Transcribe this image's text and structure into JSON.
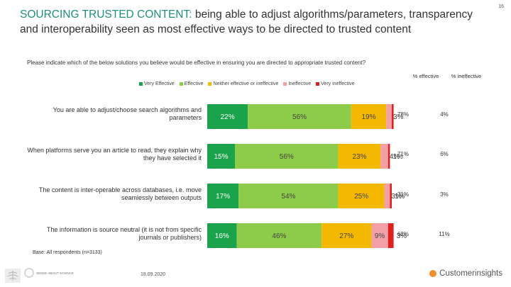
{
  "page": {
    "title_lead": "SOURCING TRUSTED CONTENT:",
    "title_rest": " being able to adjust algorithms/parameters, transparency and interoperability seen as most effective ways to be directed to trusted content",
    "page_number": "16",
    "question": "Please indicate which of the below solutions you believe would be effective in ensuring you are directed to appropriate trusted content?",
    "base": "Base: All respondents (n=3133)",
    "date": "18.09.2020",
    "brand": "Customerinsights",
    "logo_text": "SENSE ABOUT SCIENCE",
    "publisher_logo": "ELSEVIER"
  },
  "colors": {
    "very_effective": "#1aa34a",
    "effective": "#8dcb4a",
    "neither": "#f5b800",
    "ineffective": "#f2a0a6",
    "very_ineffective": "#e0201d",
    "title_accent": "#1f8f7a"
  },
  "chart_data": {
    "type": "bar",
    "orientation": "horizontal",
    "stacked": true,
    "legend": [
      "Very Effective",
      "Effective",
      "Neither effective or ineffective",
      "Ineffective",
      "Very ineffective"
    ],
    "legend_position": "top",
    "categories": [
      "You are able to adjust/choose search algorithms and parameters",
      "When platforms serve you an article to read, they explain why they have selected it",
      "The content is inter-operable across databases, i.e. move seamlessly between outputs",
      "The information is source neutral (it is not from specific journals or publishers)"
    ],
    "series": [
      {
        "name": "Very Effective",
        "values": [
          22,
          15,
          17,
          16
        ],
        "labels": [
          "22%",
          "15%",
          "17%",
          "16%"
        ]
      },
      {
        "name": "Effective",
        "values": [
          56,
          56,
          54,
          46
        ],
        "labels": [
          "56%",
          "56%",
          "54%",
          "46%"
        ]
      },
      {
        "name": "Neither effective or ineffective",
        "values": [
          19,
          23,
          25,
          27
        ],
        "labels": [
          "19%",
          "23%",
          "25%",
          "27%"
        ]
      },
      {
        "name": "Ineffective",
        "values": [
          3,
          4,
          3,
          9
        ],
        "labels": [
          "3%",
          "4%",
          "3%",
          "9%"
        ]
      },
      {
        "name": "Very ineffective",
        "values": [
          1,
          1,
          1,
          3
        ],
        "labels": [
          "",
          "1%",
          "1%",
          "3%"
        ]
      }
    ],
    "summary_headers": [
      "% effective",
      "% ineffective"
    ],
    "summary": [
      [
        "78%",
        "4%"
      ],
      [
        "71%",
        "6%"
      ],
      [
        "71%",
        "3%"
      ],
      [
        "62%",
        "11%"
      ]
    ]
  }
}
